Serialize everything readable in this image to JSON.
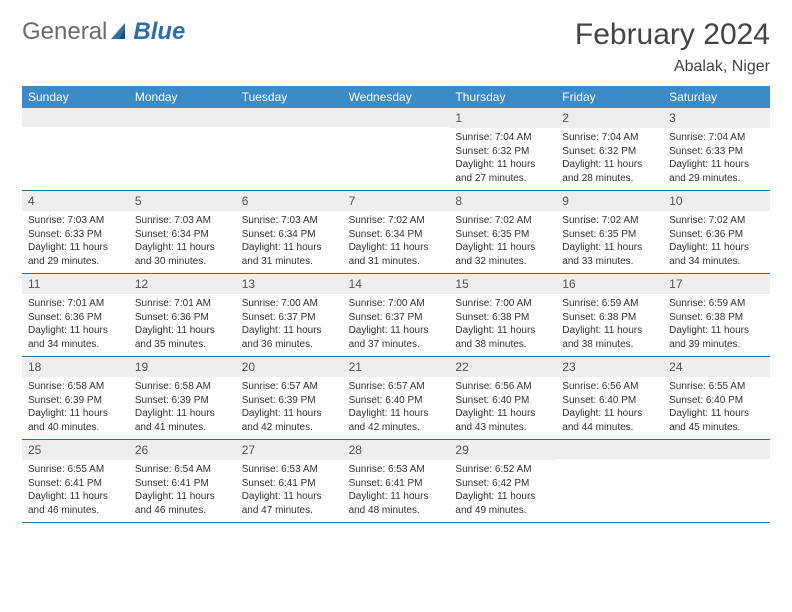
{
  "logo": {
    "part1": "General",
    "part2": "Blue"
  },
  "header": {
    "title": "February 2024",
    "location": "Abalak, Niger"
  },
  "colors": {
    "header_bg": "#3b8bc9",
    "header_fg": "#ffffff",
    "daynum_bg": "#eeeeee",
    "week_border": "#2f6fa8",
    "text": "#333333",
    "logo_blue": "#2f6fa8",
    "logo_grey": "#6b6b6b"
  },
  "layout": {
    "columns": 7,
    "rows": 5
  },
  "daynames": [
    "Sunday",
    "Monday",
    "Tuesday",
    "Wednesday",
    "Thursday",
    "Friday",
    "Saturday"
  ],
  "weeks": [
    [
      null,
      null,
      null,
      null,
      {
        "day": "1",
        "sunrise": "Sunrise: 7:04 AM",
        "sunset": "Sunset: 6:32 PM",
        "daylight1": "Daylight: 11 hours",
        "daylight2": "and 27 minutes."
      },
      {
        "day": "2",
        "sunrise": "Sunrise: 7:04 AM",
        "sunset": "Sunset: 6:32 PM",
        "daylight1": "Daylight: 11 hours",
        "daylight2": "and 28 minutes."
      },
      {
        "day": "3",
        "sunrise": "Sunrise: 7:04 AM",
        "sunset": "Sunset: 6:33 PM",
        "daylight1": "Daylight: 11 hours",
        "daylight2": "and 29 minutes."
      }
    ],
    [
      {
        "day": "4",
        "sunrise": "Sunrise: 7:03 AM",
        "sunset": "Sunset: 6:33 PM",
        "daylight1": "Daylight: 11 hours",
        "daylight2": "and 29 minutes."
      },
      {
        "day": "5",
        "sunrise": "Sunrise: 7:03 AM",
        "sunset": "Sunset: 6:34 PM",
        "daylight1": "Daylight: 11 hours",
        "daylight2": "and 30 minutes."
      },
      {
        "day": "6",
        "sunrise": "Sunrise: 7:03 AM",
        "sunset": "Sunset: 6:34 PM",
        "daylight1": "Daylight: 11 hours",
        "daylight2": "and 31 minutes."
      },
      {
        "day": "7",
        "sunrise": "Sunrise: 7:02 AM",
        "sunset": "Sunset: 6:34 PM",
        "daylight1": "Daylight: 11 hours",
        "daylight2": "and 31 minutes."
      },
      {
        "day": "8",
        "sunrise": "Sunrise: 7:02 AM",
        "sunset": "Sunset: 6:35 PM",
        "daylight1": "Daylight: 11 hours",
        "daylight2": "and 32 minutes."
      },
      {
        "day": "9",
        "sunrise": "Sunrise: 7:02 AM",
        "sunset": "Sunset: 6:35 PM",
        "daylight1": "Daylight: 11 hours",
        "daylight2": "and 33 minutes."
      },
      {
        "day": "10",
        "sunrise": "Sunrise: 7:02 AM",
        "sunset": "Sunset: 6:36 PM",
        "daylight1": "Daylight: 11 hours",
        "daylight2": "and 34 minutes."
      }
    ],
    [
      {
        "day": "11",
        "sunrise": "Sunrise: 7:01 AM",
        "sunset": "Sunset: 6:36 PM",
        "daylight1": "Daylight: 11 hours",
        "daylight2": "and 34 minutes."
      },
      {
        "day": "12",
        "sunrise": "Sunrise: 7:01 AM",
        "sunset": "Sunset: 6:36 PM",
        "daylight1": "Daylight: 11 hours",
        "daylight2": "and 35 minutes."
      },
      {
        "day": "13",
        "sunrise": "Sunrise: 7:00 AM",
        "sunset": "Sunset: 6:37 PM",
        "daylight1": "Daylight: 11 hours",
        "daylight2": "and 36 minutes."
      },
      {
        "day": "14",
        "sunrise": "Sunrise: 7:00 AM",
        "sunset": "Sunset: 6:37 PM",
        "daylight1": "Daylight: 11 hours",
        "daylight2": "and 37 minutes."
      },
      {
        "day": "15",
        "sunrise": "Sunrise: 7:00 AM",
        "sunset": "Sunset: 6:38 PM",
        "daylight1": "Daylight: 11 hours",
        "daylight2": "and 38 minutes."
      },
      {
        "day": "16",
        "sunrise": "Sunrise: 6:59 AM",
        "sunset": "Sunset: 6:38 PM",
        "daylight1": "Daylight: 11 hours",
        "daylight2": "and 38 minutes."
      },
      {
        "day": "17",
        "sunrise": "Sunrise: 6:59 AM",
        "sunset": "Sunset: 6:38 PM",
        "daylight1": "Daylight: 11 hours",
        "daylight2": "and 39 minutes."
      }
    ],
    [
      {
        "day": "18",
        "sunrise": "Sunrise: 6:58 AM",
        "sunset": "Sunset: 6:39 PM",
        "daylight1": "Daylight: 11 hours",
        "daylight2": "and 40 minutes."
      },
      {
        "day": "19",
        "sunrise": "Sunrise: 6:58 AM",
        "sunset": "Sunset: 6:39 PM",
        "daylight1": "Daylight: 11 hours",
        "daylight2": "and 41 minutes."
      },
      {
        "day": "20",
        "sunrise": "Sunrise: 6:57 AM",
        "sunset": "Sunset: 6:39 PM",
        "daylight1": "Daylight: 11 hours",
        "daylight2": "and 42 minutes."
      },
      {
        "day": "21",
        "sunrise": "Sunrise: 6:57 AM",
        "sunset": "Sunset: 6:40 PM",
        "daylight1": "Daylight: 11 hours",
        "daylight2": "and 42 minutes."
      },
      {
        "day": "22",
        "sunrise": "Sunrise: 6:56 AM",
        "sunset": "Sunset: 6:40 PM",
        "daylight1": "Daylight: 11 hours",
        "daylight2": "and 43 minutes."
      },
      {
        "day": "23",
        "sunrise": "Sunrise: 6:56 AM",
        "sunset": "Sunset: 6:40 PM",
        "daylight1": "Daylight: 11 hours",
        "daylight2": "and 44 minutes."
      },
      {
        "day": "24",
        "sunrise": "Sunrise: 6:55 AM",
        "sunset": "Sunset: 6:40 PM",
        "daylight1": "Daylight: 11 hours",
        "daylight2": "and 45 minutes."
      }
    ],
    [
      {
        "day": "25",
        "sunrise": "Sunrise: 6:55 AM",
        "sunset": "Sunset: 6:41 PM",
        "daylight1": "Daylight: 11 hours",
        "daylight2": "and 46 minutes."
      },
      {
        "day": "26",
        "sunrise": "Sunrise: 6:54 AM",
        "sunset": "Sunset: 6:41 PM",
        "daylight1": "Daylight: 11 hours",
        "daylight2": "and 46 minutes."
      },
      {
        "day": "27",
        "sunrise": "Sunrise: 6:53 AM",
        "sunset": "Sunset: 6:41 PM",
        "daylight1": "Daylight: 11 hours",
        "daylight2": "and 47 minutes."
      },
      {
        "day": "28",
        "sunrise": "Sunrise: 6:53 AM",
        "sunset": "Sunset: 6:41 PM",
        "daylight1": "Daylight: 11 hours",
        "daylight2": "and 48 minutes."
      },
      {
        "day": "29",
        "sunrise": "Sunrise: 6:52 AM",
        "sunset": "Sunset: 6:42 PM",
        "daylight1": "Daylight: 11 hours",
        "daylight2": "and 49 minutes."
      },
      null,
      null
    ]
  ]
}
